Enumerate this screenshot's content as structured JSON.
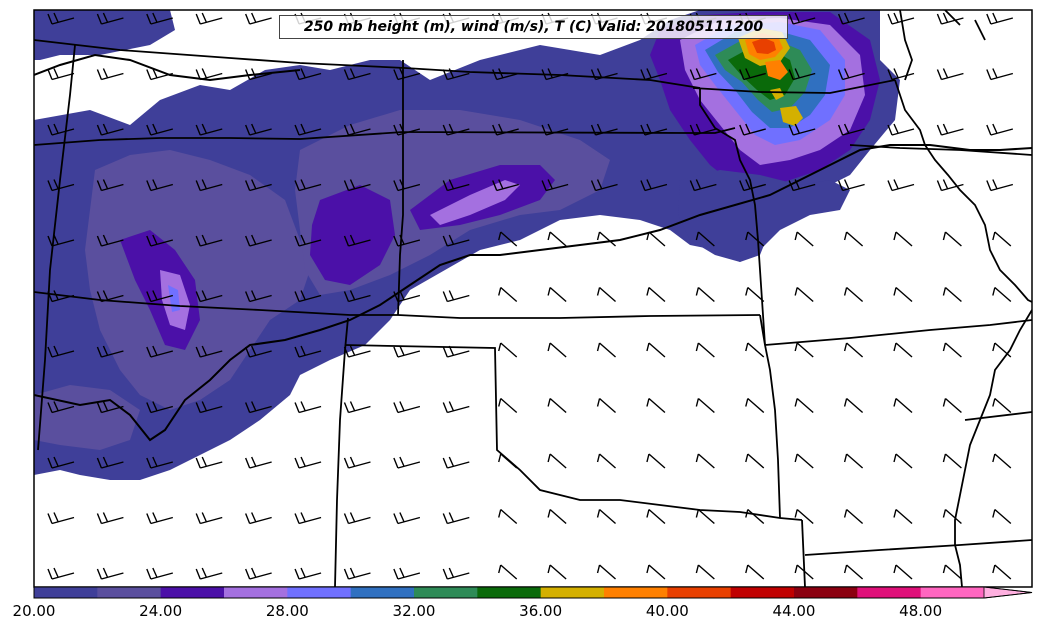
{
  "map": {
    "title": "250 mb height (m), wind (m/s), T (C) Valid: 201805111200",
    "colorbar": {
      "tick_labels": [
        "20.00",
        "24.00",
        "28.00",
        "32.00",
        "36.00",
        "40.00",
        "44.00",
        "48.00"
      ],
      "colors": [
        "#3f3f99",
        "#5a4f9e",
        "#4b10a8",
        "#a470e0",
        "#7070ff",
        "#3070c0",
        "#2e8b57",
        "#0a6a0a",
        "#d4b000",
        "#ff8000",
        "#e84000",
        "#c00000",
        "#8b0010",
        "#e0107a",
        "#ff66c0",
        "#ffb0e0"
      ],
      "min": 20,
      "max": 50,
      "step": 2
    },
    "wind_barbs": "grid of wind barbs over plot area",
    "field_colors": {
      "base": "#3f3f99",
      "mid": "#5a4f9e",
      "deep": "#4b10a8",
      "light": "#a470e0",
      "blue": "#7070ff"
    }
  }
}
